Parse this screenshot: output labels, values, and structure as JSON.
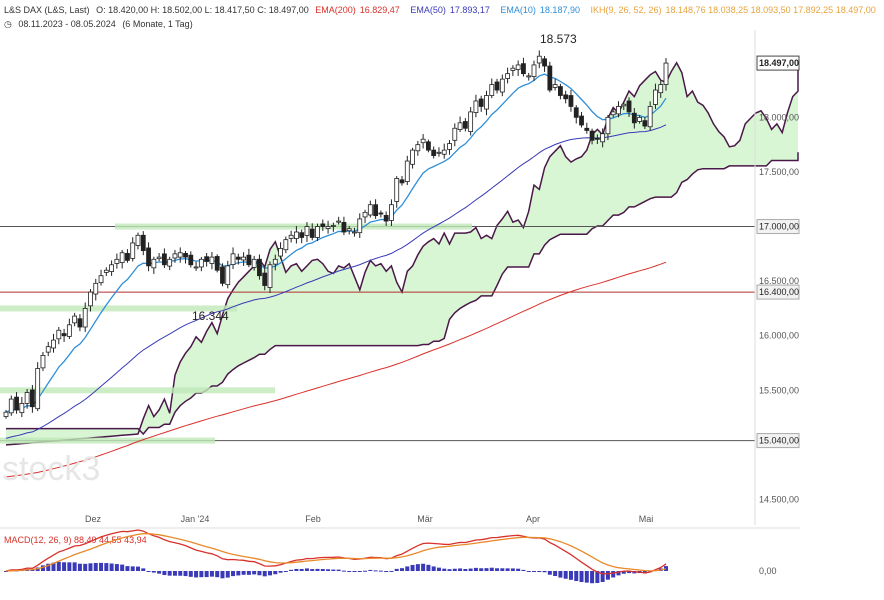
{
  "header": {
    "instrument": "L&S DAX (L&S, Last)",
    "ohlc": "O: 18.420,00  H: 18.502,00  L: 18.417,50  C: 18.497,00",
    "ema200_label": "EMA(200)",
    "ema200_value": "16.829,47",
    "ema50_label": "EMA(50)",
    "ema50_value": "17.893,17",
    "ema10_label": "EMA(10)",
    "ema10_value": "18.187,90",
    "ikh_label": "IKH(9, 26, 52, 26)",
    "ikh_values": "18.148,76  18.038,25  18.093,50  17.892,25  18.497,00",
    "range": "08.11.2023 - 08.05.2024",
    "period": "(6 Monate, 1 Tag)"
  },
  "colors": {
    "ema200": "#d9312b",
    "ema50": "#3a3ab8",
    "ema10": "#2f8fd9",
    "ikh": "#e8a33d",
    "kumo_bull": "#d8f5d4",
    "kumo_bear": "#f8d7d7",
    "span_line": "#4a1848",
    "macd": "#d9312b",
    "signal": "#e8892b",
    "hist": "#3a3ab8"
  },
  "watermark": "stock3",
  "macd_panel": {
    "label": "MACD(12, 26, 9)",
    "values": "88,49  44,55  43,94",
    "ylabel": "0,00"
  },
  "chart_data": {
    "type": "candlestick",
    "title": "L&S DAX (L&S, Last)",
    "ylim": [
      14450,
      18800
    ],
    "y_ticks": [
      {
        "value": 18000,
        "label": "18.000,00"
      },
      {
        "value": 17500,
        "label": "17.500,00"
      },
      {
        "value": 17000,
        "label": "17.000,00"
      },
      {
        "value": 16500,
        "label": "16.500,00"
      },
      {
        "value": 16400,
        "label": "16.400,00"
      },
      {
        "value": 16000,
        "label": "16.000,00"
      },
      {
        "value": 15500,
        "label": "15.500,00"
      },
      {
        "value": 15040,
        "label": "15.040,00"
      },
      {
        "value": 14500,
        "label": "14.500,00"
      }
    ],
    "x_labels": [
      "Dez",
      "Jan '24",
      "Feb",
      "Mär",
      "Apr",
      "Mai"
    ],
    "last_price_label": "18.497,00",
    "annotations": [
      {
        "text": "18.573",
        "value": 18573
      },
      {
        "text": "16.344",
        "value": 16344
      }
    ],
    "horizontal_lines": [
      17000,
      16400,
      15040
    ],
    "closes": [
      15300,
      15420,
      15320,
      15380,
      15480,
      15350,
      15700,
      15820,
      15900,
      15960,
      16050,
      16000,
      16100,
      16180,
      16080,
      16250,
      16400,
      16480,
      16550,
      16600,
      16650,
      16700,
      16760,
      16690,
      16850,
      16920,
      16780,
      16640,
      16700,
      16720,
      16650,
      16700,
      16750,
      16760,
      16720,
      16650,
      16630,
      16700,
      16680,
      16720,
      16600,
      16480,
      16640,
      16750,
      16700,
      16720,
      16650,
      16700,
      16550,
      16460,
      16650,
      16700,
      16800,
      16880,
      16920,
      16950,
      16900,
      17000,
      16900,
      17000,
      17000,
      17000,
      17010,
      17050,
      16950,
      16980,
      16950,
      17070,
      17130,
      17200,
      17100,
      17120,
      17050,
      17200,
      17440,
      17400,
      17600,
      17700,
      17750,
      17800,
      17700,
      17650,
      17680,
      17700,
      17760,
      17900,
      17950,
      17900,
      18050,
      18150,
      18100,
      18200,
      18300,
      18250,
      18350,
      18400,
      18450,
      18480,
      18400,
      18380,
      18480,
      18560,
      18470,
      18250,
      18300,
      18200,
      18170,
      18100,
      18000,
      17930,
      17880,
      17790,
      17800,
      17850,
      18000,
      18050,
      18100,
      18120,
      18050,
      17950,
      18000,
      17920,
      18100,
      18250,
      18300,
      18497
    ],
    "series": [
      {
        "name": "EMA(10)",
        "last": 18187.9
      },
      {
        "name": "EMA(50)",
        "last": 17893.17
      },
      {
        "name": "EMA(200)",
        "last": 16829.47
      }
    ],
    "grid": false,
    "legend": "top"
  }
}
